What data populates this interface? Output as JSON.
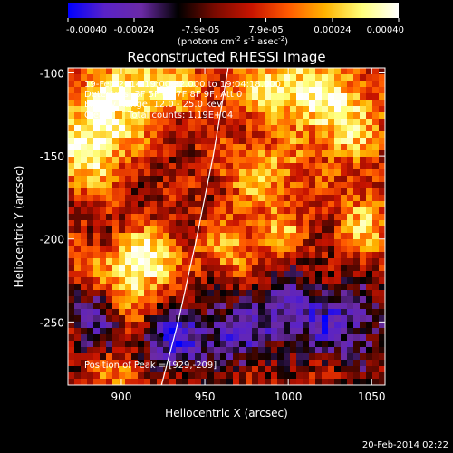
{
  "chart_data": {
    "type": "heatmap",
    "title": "Reconstructed RHESSI Image",
    "xlabel": "Heliocentric X (arcsec)",
    "ylabel": "Heliocentric Y (arcsec)",
    "xlim": [
      868,
      1058
    ],
    "ylim": [
      -288,
      -97
    ],
    "x_ticks": [
      900,
      950,
      1000,
      1050
    ],
    "y_ticks": [
      -100,
      -150,
      -200,
      -250
    ],
    "colorbar": {
      "range": [
        -0.0004,
        0.0004
      ],
      "tick_labels": [
        "-0.00040",
        "-0.00024",
        "-7.9e-05",
        "7.9e-05",
        "0.00024",
        "0.00040"
      ],
      "tick_values": [
        -0.0004,
        -0.00024,
        -7.9e-05,
        7.9e-05,
        0.00024,
        0.0004
      ],
      "label_line1": "(photons cm",
      "label_sup1": "-2",
      "label_mid1": " s",
      "label_sup2": "-1",
      "label_mid2": " asec",
      "label_sup3": "-2",
      "label_end": ")",
      "colormap": [
        "#0000ff",
        "#5a22c8",
        "#6b2aa6",
        "#000000",
        "#7a0a00",
        "#c81400",
        "#ff5a00",
        "#ffb400",
        "#ffff7a",
        "#ffffff"
      ]
    },
    "annotations": {
      "time_range": "19-Feb-2014 19:00:32.000 to 19:04:18.000",
      "detectors": "Detectors: 3F 5F 6F 7F 8F 9F, Att 0",
      "energy": "Energy Range: 12.0 - 25.0 keV",
      "clean_prefix": "Clean",
      "clean_suffix": "Total counts: 1.19E+04",
      "peak": "Position of Peak = [929,-209]"
    },
    "limb_curve": [
      [
        924,
        -288
      ],
      [
        934,
        -250
      ],
      [
        945,
        -200
      ],
      [
        955,
        -150
      ],
      [
        964,
        -97
      ]
    ],
    "blobs": [
      {
        "x": 895,
        "y": -120,
        "amp": 0.9,
        "sx": 18,
        "sy": 16
      },
      {
        "x": 880,
        "y": -150,
        "amp": 0.8,
        "sx": 14,
        "sy": 16
      },
      {
        "x": 925,
        "y": -108,
        "amp": 0.75,
        "sx": 16,
        "sy": 10
      },
      {
        "x": 915,
        "y": -212,
        "amp": 0.9,
        "sx": 14,
        "sy": 12
      },
      {
        "x": 905,
        "y": -235,
        "amp": 0.65,
        "sx": 10,
        "sy": 14
      },
      {
        "x": 1000,
        "y": -110,
        "amp": 0.85,
        "sx": 22,
        "sy": 14
      },
      {
        "x": 1035,
        "y": -130,
        "amp": 0.7,
        "sx": 16,
        "sy": 18
      },
      {
        "x": 985,
        "y": -160,
        "amp": 0.6,
        "sx": 18,
        "sy": 14
      },
      {
        "x": 1045,
        "y": -190,
        "amp": 0.6,
        "sx": 12,
        "sy": 14
      },
      {
        "x": 965,
        "y": -205,
        "amp": 0.55,
        "sx": 12,
        "sy": 12
      },
      {
        "x": 995,
        "y": -195,
        "amp": 0.5,
        "sx": 10,
        "sy": 10
      },
      {
        "x": 880,
        "y": -220,
        "amp": 0.45,
        "sx": 10,
        "sy": 10
      },
      {
        "x": 930,
        "y": -260,
        "amp": -0.75,
        "sx": 14,
        "sy": 14
      },
      {
        "x": 885,
        "y": -245,
        "amp": -0.6,
        "sx": 12,
        "sy": 16
      },
      {
        "x": 1005,
        "y": -245,
        "amp": -0.65,
        "sx": 22,
        "sy": 16
      },
      {
        "x": 965,
        "y": -260,
        "amp": -0.55,
        "sx": 14,
        "sy": 14
      },
      {
        "x": 1040,
        "y": -255,
        "amp": -0.45,
        "sx": 14,
        "sy": 18
      },
      {
        "x": 900,
        "y": -280,
        "amp": 0.4,
        "sx": 12,
        "sy": 8
      }
    ]
  },
  "footer": {
    "date": "20-Feb-2014 02:22"
  }
}
